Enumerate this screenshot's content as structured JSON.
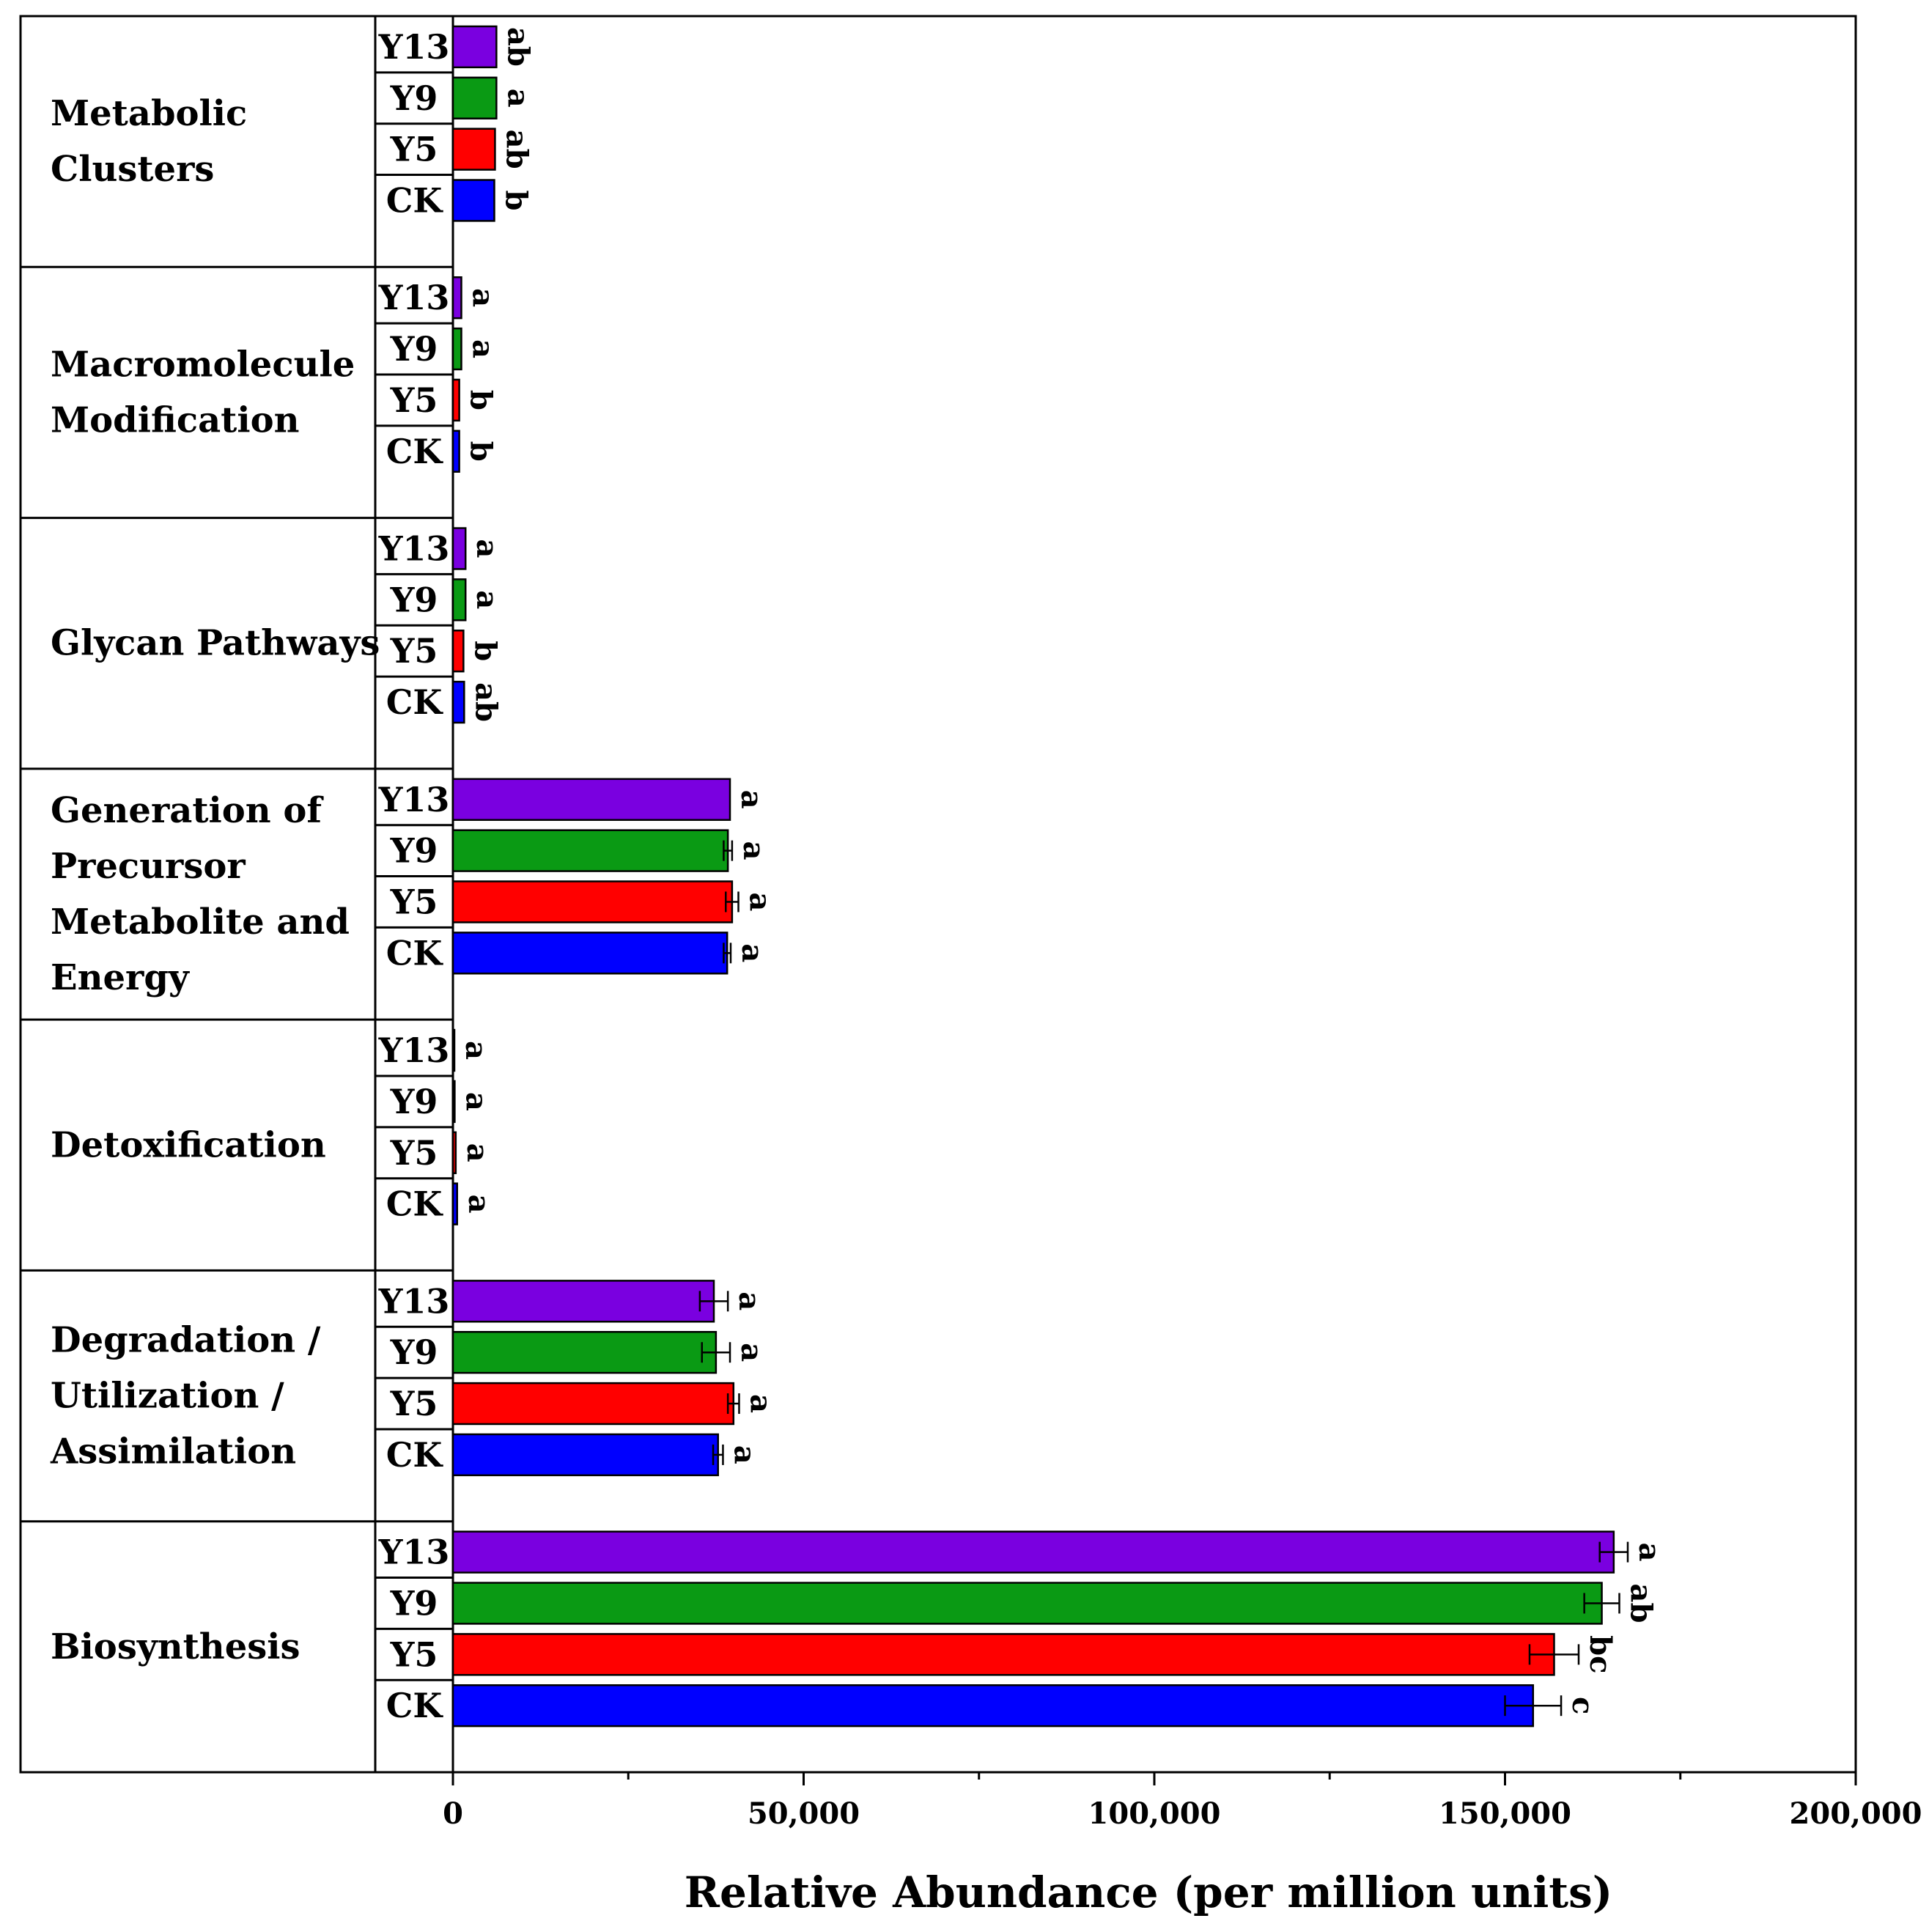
{
  "chart_data": {
    "type": "bar",
    "orientation": "horizontal",
    "xlabel": "Relative Abundance (per million units)",
    "xlim": [
      0,
      200000
    ],
    "xticks": [
      0,
      50000,
      100000,
      150000,
      200000
    ],
    "xtick_labels": [
      "0",
      "50,000",
      "100,000",
      "150,000",
      "200,000"
    ],
    "groups": [
      "Y13",
      "Y9",
      "Y5",
      "CK"
    ],
    "colors": {
      "Y13": "#7a00e0",
      "Y9": "#0a9a14",
      "Y5": "#ff0000",
      "CK": "#0000ff"
    },
    "categories": [
      {
        "label_lines": [
          "Metabolic",
          "Clusters"
        ],
        "bars": [
          {
            "group": "Y13",
            "value": 6200,
            "error": 0,
            "sig": "ab"
          },
          {
            "group": "Y9",
            "value": 6200,
            "error": 0,
            "sig": "a"
          },
          {
            "group": "Y5",
            "value": 6000,
            "error": 0,
            "sig": "ab"
          },
          {
            "group": "CK",
            "value": 5900,
            "error": 0,
            "sig": "b"
          }
        ]
      },
      {
        "label_lines": [
          "Macromolecule",
          "Modification"
        ],
        "bars": [
          {
            "group": "Y13",
            "value": 1200,
            "error": 0,
            "sig": "a"
          },
          {
            "group": "Y9",
            "value": 1200,
            "error": 0,
            "sig": "a"
          },
          {
            "group": "Y5",
            "value": 900,
            "error": 0,
            "sig": "b"
          },
          {
            "group": "CK",
            "value": 900,
            "error": 0,
            "sig": "b"
          }
        ]
      },
      {
        "label_lines": [
          "Glycan Pathways"
        ],
        "bars": [
          {
            "group": "Y13",
            "value": 1800,
            "error": 0,
            "sig": "a"
          },
          {
            "group": "Y9",
            "value": 1800,
            "error": 0,
            "sig": "a"
          },
          {
            "group": "Y5",
            "value": 1500,
            "error": 0,
            "sig": "b"
          },
          {
            "group": "CK",
            "value": 1600,
            "error": 0,
            "sig": "ab"
          }
        ]
      },
      {
        "label_lines": [
          "Generation of",
          "Precursor",
          "Metabolite and",
          "Energy"
        ],
        "bars": [
          {
            "group": "Y13",
            "value": 39500,
            "error": 0,
            "sig": "a"
          },
          {
            "group": "Y9",
            "value": 39200,
            "error": 600,
            "sig": "a"
          },
          {
            "group": "Y5",
            "value": 39800,
            "error": 900,
            "sig": "a"
          },
          {
            "group": "CK",
            "value": 39100,
            "error": 500,
            "sig": "a"
          }
        ]
      },
      {
        "label_lines": [
          "Detoxification"
        ],
        "bars": [
          {
            "group": "Y13",
            "value": 200,
            "error": 0,
            "sig": "a"
          },
          {
            "group": "Y9",
            "value": 250,
            "error": 0,
            "sig": "a"
          },
          {
            "group": "Y5",
            "value": 400,
            "error": 0,
            "sig": "a"
          },
          {
            "group": "CK",
            "value": 600,
            "error": 0,
            "sig": "a"
          }
        ]
      },
      {
        "label_lines": [
          "Degradation /",
          "Utilization /",
          "Assimilation"
        ],
        "bars": [
          {
            "group": "Y13",
            "value": 37200,
            "error": 2000,
            "sig": "a"
          },
          {
            "group": "Y9",
            "value": 37500,
            "error": 2000,
            "sig": "a"
          },
          {
            "group": "Y5",
            "value": 40000,
            "error": 800,
            "sig": "a"
          },
          {
            "group": "CK",
            "value": 37800,
            "error": 700,
            "sig": "a"
          }
        ]
      },
      {
        "label_lines": [
          "Biosynthesis"
        ],
        "bars": [
          {
            "group": "Y13",
            "value": 165500,
            "error": 2000,
            "sig": "a"
          },
          {
            "group": "Y9",
            "value": 163800,
            "error": 2500,
            "sig": "ab"
          },
          {
            "group": "Y5",
            "value": 157000,
            "error": 3500,
            "sig": "bc"
          },
          {
            "group": "CK",
            "value": 154000,
            "error": 4000,
            "sig": "c"
          }
        ]
      }
    ]
  }
}
